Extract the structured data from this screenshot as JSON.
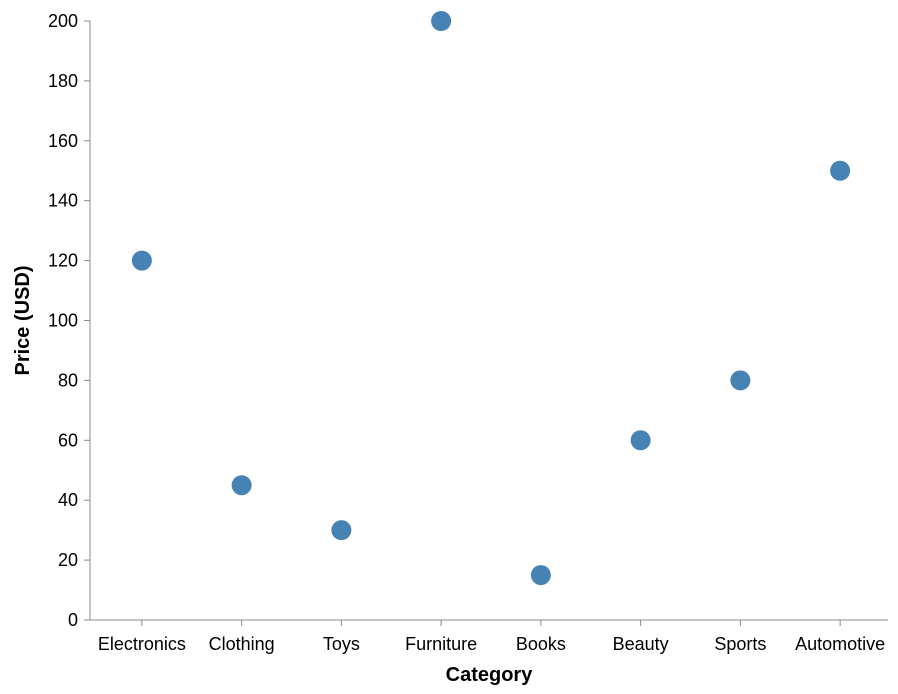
{
  "chart_data": {
    "type": "scatter",
    "title": "",
    "xlabel": "Category",
    "ylabel": "Price (USD)",
    "categories": [
      "Electronics",
      "Clothing",
      "Toys",
      "Furniture",
      "Books",
      "Beauty",
      "Sports",
      "Automotive"
    ],
    "series": [
      {
        "values": [
          120,
          45,
          30,
          200,
          15,
          60,
          80,
          150
        ]
      }
    ],
    "ylim": [
      0,
      200
    ],
    "yticks": [
      0,
      20,
      40,
      60,
      80,
      100,
      120,
      140,
      160,
      180,
      200
    ],
    "grid": false,
    "legend": "none",
    "point_color": "#4682b4"
  }
}
